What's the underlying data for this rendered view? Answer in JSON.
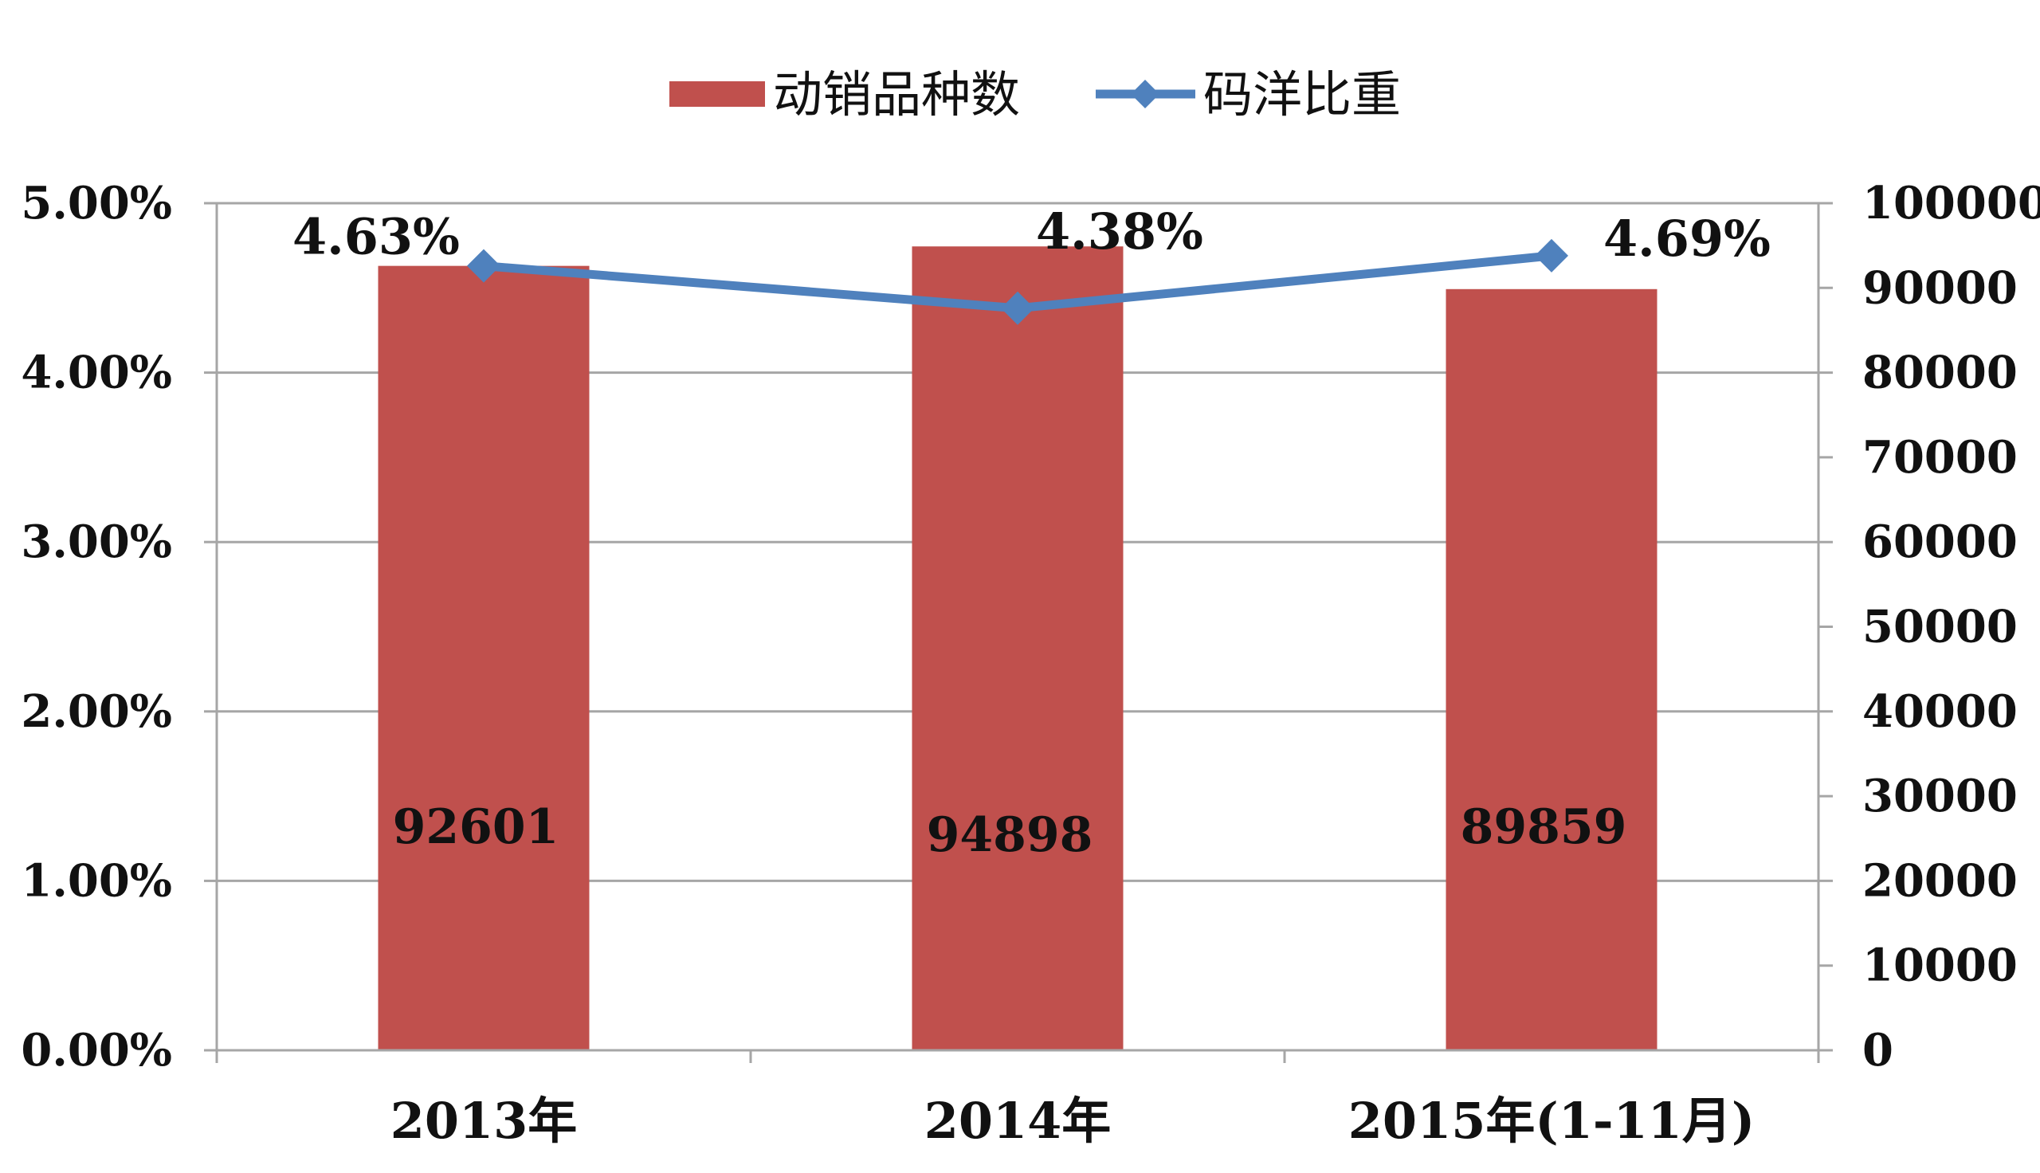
{
  "chart_data": {
    "type": "bar",
    "categories": [
      "2013年",
      "2014年",
      "2015年(1-11月)"
    ],
    "series": [
      {
        "name": "动销品种数",
        "type": "bar",
        "axis": "right",
        "values": [
          92601,
          94898,
          89859
        ],
        "color": "#C0504D",
        "data_labels": [
          "92601",
          "94898",
          "89859"
        ]
      },
      {
        "name": "码洋比重",
        "type": "line",
        "axis": "left",
        "values": [
          4.63,
          4.38,
          4.69
        ],
        "color": "#4F81BD",
        "marker": "diamond",
        "data_labels": [
          "4.63%",
          "4.38%",
          "4.69%"
        ]
      }
    ],
    "left_axis": {
      "ylim": [
        0,
        5
      ],
      "ticks": [
        0,
        1,
        2,
        3,
        4,
        5
      ],
      "tick_labels": [
        "0.00%",
        "1.00%",
        "2.00%",
        "3.00%",
        "4.00%",
        "5.00%"
      ]
    },
    "right_axis": {
      "ylim": [
        0,
        100000
      ],
      "ticks": [
        0,
        10000,
        20000,
        30000,
        40000,
        50000,
        60000,
        70000,
        80000,
        90000,
        100000
      ],
      "tick_labels": [
        "0",
        "10000",
        "20000",
        "30000",
        "40000",
        "50000",
        "60000",
        "70000",
        "80000",
        "90000",
        "100000"
      ]
    },
    "grid": true,
    "legend": "top-center",
    "gridline_color": "#A6A6A6"
  }
}
